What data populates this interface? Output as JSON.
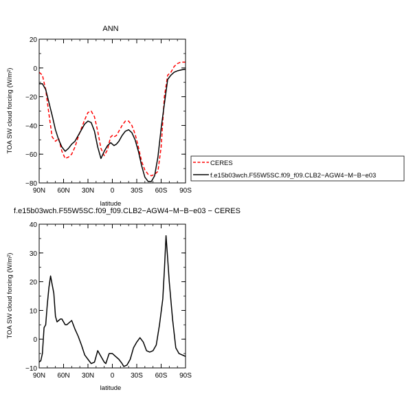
{
  "chart_data": [
    {
      "type": "line",
      "title": "ANN",
      "xlabel": "latitude",
      "ylabel": "TOA SW cloud forcing (W/m²)",
      "xlim": [
        90,
        -90
      ],
      "ylim": [
        -80,
        20
      ],
      "x_ticks": [
        90,
        60,
        30,
        0,
        -30,
        -60,
        -90
      ],
      "x_tick_labels": [
        "90N",
        "60N",
        "30N",
        "0",
        "30S",
        "60S",
        "90S"
      ],
      "y_ticks": [
        -80,
        -60,
        -40,
        -20,
        0,
        20
      ],
      "y_tick_labels": [
        "−80",
        "−60",
        "−40",
        "−20",
        "0",
        "20"
      ],
      "legend_position": "right",
      "series": [
        {
          "name": "CERES",
          "color": "#ff0000",
          "dash": "dashed",
          "x": [
            90,
            86,
            82,
            78,
            74,
            70,
            66,
            62,
            58,
            54,
            50,
            46,
            42,
            38,
            34,
            30,
            26,
            22,
            18,
            14,
            10,
            6,
            4,
            2,
            0,
            -2,
            -5,
            -8,
            -12,
            -16,
            -20,
            -24,
            -28,
            -32,
            -36,
            -40,
            -44,
            -48,
            -52,
            -56,
            -60,
            -64,
            -68,
            -72,
            -76,
            -80,
            -84,
            -88,
            -90
          ],
          "y": [
            -3,
            -5,
            -15,
            -32,
            -48,
            -51,
            -49,
            -58,
            -63,
            -62,
            -60,
            -55,
            -48,
            -42,
            -36,
            -31,
            -30,
            -34,
            -44,
            -56,
            -61,
            -57,
            -52,
            -48,
            -47,
            -48,
            -47,
            -44,
            -40,
            -37,
            -37,
            -40,
            -46,
            -55,
            -65,
            -71,
            -74,
            -75,
            -74,
            -72,
            -55,
            -20,
            -5,
            -3,
            1,
            3,
            4,
            4,
            4
          ]
        },
        {
          "name": "f.e15b03wch.F55W5SC.f09_f09.CLB2−AGW4−M−B−e03",
          "color": "#000000",
          "dash": "solid",
          "x": [
            90,
            86,
            82,
            78,
            74,
            70,
            66,
            62,
            58,
            54,
            50,
            46,
            42,
            38,
            34,
            30,
            26,
            22,
            18,
            14,
            10,
            6,
            4,
            2,
            0,
            -2,
            -5,
            -8,
            -12,
            -16,
            -20,
            -24,
            -28,
            -32,
            -36,
            -40,
            -44,
            -48,
            -52,
            -56,
            -60,
            -64,
            -68,
            -72,
            -76,
            -80,
            -84,
            -88,
            -90
          ],
          "y": [
            -11,
            -11,
            -15,
            -24,
            -33,
            -43,
            -50,
            -55,
            -58,
            -56,
            -53,
            -51,
            -47,
            -43,
            -39,
            -37,
            -38,
            -44,
            -55,
            -63,
            -58,
            -54,
            -53,
            -52,
            -53,
            -54,
            -53,
            -51,
            -47,
            -44,
            -43,
            -45,
            -50,
            -58,
            -68,
            -76,
            -79,
            -79,
            -75,
            -62,
            -42,
            -25,
            -8,
            -5,
            -3,
            -2,
            -1.5,
            -1,
            -1
          ]
        }
      ]
    },
    {
      "type": "line",
      "title": "f.e15b03wch.F55W5SC.f09_f09.CLB2−AGW4−M−B−e03 − CERES",
      "xlabel": "latitude",
      "ylabel": "TOA SW cloud forcing (W/m²)",
      "xlim": [
        90,
        -90
      ],
      "ylim": [
        -10,
        40
      ],
      "x_ticks": [
        90,
        60,
        30,
        0,
        -30,
        -60,
        -90
      ],
      "x_tick_labels": [
        "90N",
        "60N",
        "30N",
        "0",
        "30S",
        "60S",
        "90S"
      ],
      "y_ticks": [
        -10,
        0,
        10,
        20,
        30,
        40
      ],
      "y_tick_labels": [
        "−10",
        "0",
        "10",
        "20",
        "30",
        "40"
      ],
      "series": [
        {
          "color": "#000000",
          "dash": "solid",
          "x": [
            90,
            88,
            86,
            84,
            82,
            80,
            78,
            76,
            74,
            72,
            70,
            68,
            66,
            64,
            62,
            60,
            58,
            56,
            54,
            50,
            46,
            42,
            38,
            34,
            30,
            26,
            22,
            18,
            14,
            10,
            8,
            4,
            0,
            -4,
            -8,
            -12,
            -14,
            -18,
            -22,
            -26,
            -30,
            -34,
            -38,
            -42,
            -46,
            -50,
            -54,
            -58,
            -62,
            -64,
            -66,
            -68,
            -70,
            -74,
            -78,
            -82,
            -86,
            -90
          ],
          "y": [
            -8,
            -7.5,
            -5,
            4,
            5,
            12,
            18,
            22,
            19,
            16,
            8,
            6,
            6.5,
            7,
            7,
            6,
            5,
            5,
            5.5,
            6.5,
            3.5,
            1,
            -2,
            -5.5,
            -7,
            -8.5,
            -8,
            -4,
            -6,
            -8,
            -8.5,
            -5,
            -5,
            -6,
            -7,
            -8.5,
            -9.5,
            -9,
            -7,
            -3,
            -1,
            0.5,
            -1,
            -4,
            -4.5,
            -4,
            -2,
            5,
            14,
            24,
            36,
            28,
            20,
            7,
            -3,
            -5,
            -5.5,
            -6
          ]
        }
      ]
    }
  ]
}
